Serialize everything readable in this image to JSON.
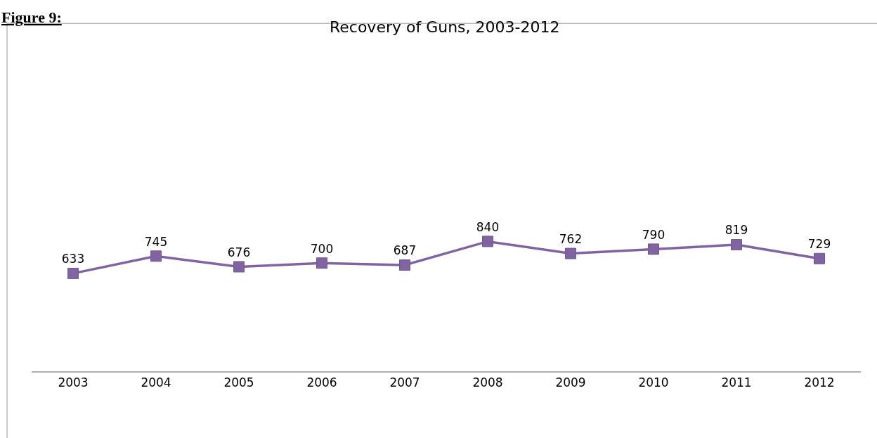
{
  "chart_data": {
    "type": "line",
    "title": "Recovery of Guns, 2003-2012",
    "annotations": [
      "Figure 9:"
    ],
    "categories": [
      "2003",
      "2004",
      "2005",
      "2006",
      "2007",
      "2008",
      "2009",
      "2010",
      "2011",
      "2012"
    ],
    "series": [
      {
        "color": "#8064a2",
        "values": [
          633,
          745,
          676,
          700,
          687,
          840,
          762,
          790,
          819,
          729
        ]
      }
    ],
    "tick_labels": "x",
    "data_labels": true,
    "marker": "square",
    "line_style": "solid"
  }
}
